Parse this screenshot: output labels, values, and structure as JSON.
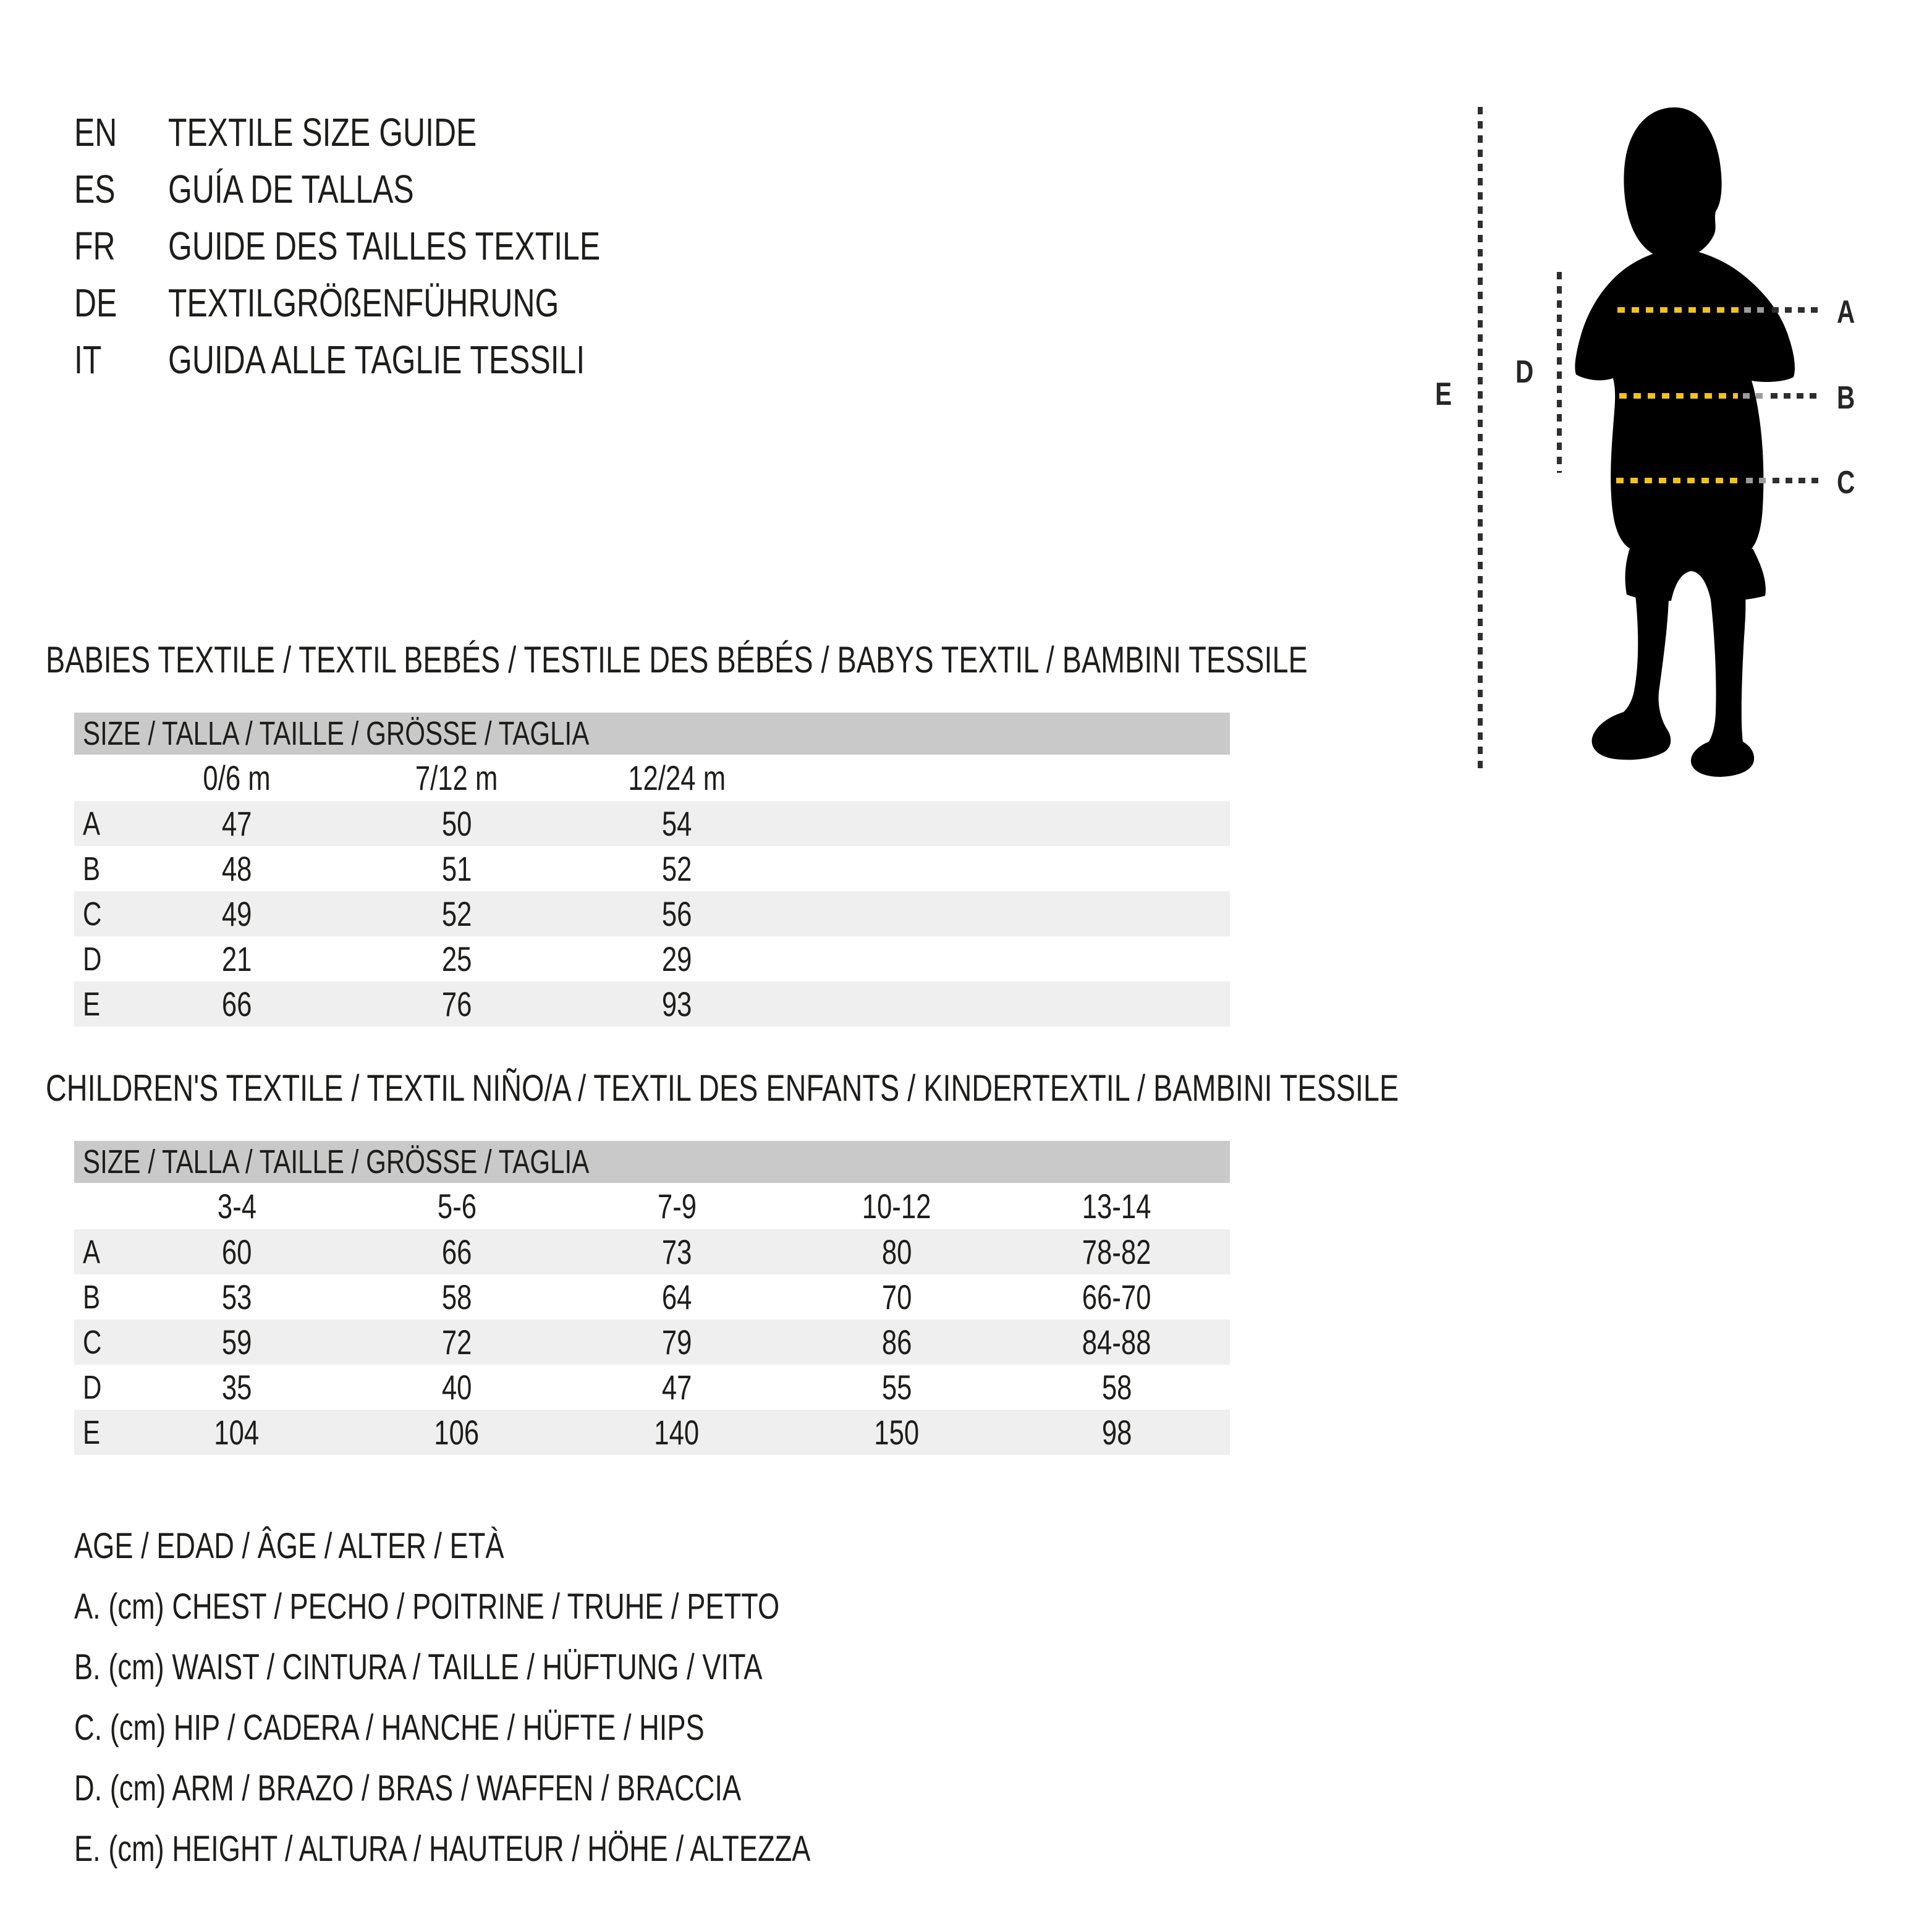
{
  "colors": {
    "text": "#1d1d1b",
    "header_bar_grey": "#c9c9c9",
    "row_stripe_grey": "#efefef",
    "dash_dark": "#2e2e2e",
    "dash_grey": "#9b9b9b",
    "accent_yellow": "#f2c318",
    "silhouette_black": "#000000"
  },
  "languages": [
    {
      "code": "EN",
      "title": "TEXTILE SIZE GUIDE"
    },
    {
      "code": "ES",
      "title": "GUÍA DE TALLAS"
    },
    {
      "code": "FR",
      "title": "GUIDE DES TAILLES TEXTILE"
    },
    {
      "code": "DE",
      "title": "TEXTILGRÖßENFÜHRUNG"
    },
    {
      "code": "IT",
      "title": "GUIDA ALLE TAGLIE TESSILI"
    }
  ],
  "figure": {
    "chest_label": "A",
    "waist_label": "B",
    "hip_label": "C",
    "arm_label": "D",
    "height_label": "E"
  },
  "tables": [
    {
      "title": "BABIES TEXTILE / TEXTIL BEBÉS / TESTILE DES BÉBÉS / BABYS TEXTIL / BAMBINI TESSILE",
      "size_header": "SIZE / TALLA / TAILLE / GRÖSSE / TAGLIA",
      "columns": [
        "0/6 m",
        "7/12 m",
        "12/24 m"
      ],
      "rows": [
        {
          "label": "A",
          "values": [
            "47",
            "50",
            "54"
          ]
        },
        {
          "label": "B",
          "values": [
            "48",
            "51",
            "52"
          ]
        },
        {
          "label": "C",
          "values": [
            "49",
            "52",
            "56"
          ]
        },
        {
          "label": "D",
          "values": [
            "21",
            "25",
            "29"
          ]
        },
        {
          "label": "E",
          "values": [
            "66",
            "76",
            "93"
          ]
        }
      ]
    },
    {
      "title": "CHILDREN'S TEXTILE / TEXTIL NIÑO/A / TEXTIL DES ENFANTS / KINDERTEXTIL / BAMBINI TESSILE",
      "size_header": "SIZE / TALLA / TAILLE / GRÖSSE / TAGLIA",
      "columns": [
        "3-4",
        "5-6",
        "7-9",
        "10-12",
        "13-14"
      ],
      "rows": [
        {
          "label": "A",
          "values": [
            "60",
            "66",
            "73",
            "80",
            "78-82"
          ]
        },
        {
          "label": "B",
          "values": [
            "53",
            "58",
            "64",
            "70",
            "66-70"
          ]
        },
        {
          "label": "C",
          "values": [
            "59",
            "72",
            "79",
            "86",
            "84-88"
          ]
        },
        {
          "label": "D",
          "values": [
            "35",
            "40",
            "47",
            "55",
            "58"
          ]
        },
        {
          "label": "E",
          "values": [
            "104",
            "106",
            "140",
            "150",
            "98"
          ]
        }
      ]
    }
  ],
  "legend": [
    "AGE / EDAD / ÂGE / ALTER / ETÀ",
    "A. (cm) CHEST / PECHO / POITRINE / TRUHE / PETTO",
    "B. (cm) WAIST / CINTURA / TAILLE / HÜFTUNG / VITA",
    "C. (cm) HIP / CADERA / HANCHE / HÜFTE / HIPS",
    "D. (cm) ARM / BRAZO / BRAS / WAFFEN / BRACCIA",
    "E. (cm) HEIGHT / ALTURA / HAUTEUR / HÖHE / ALTEZZA"
  ]
}
